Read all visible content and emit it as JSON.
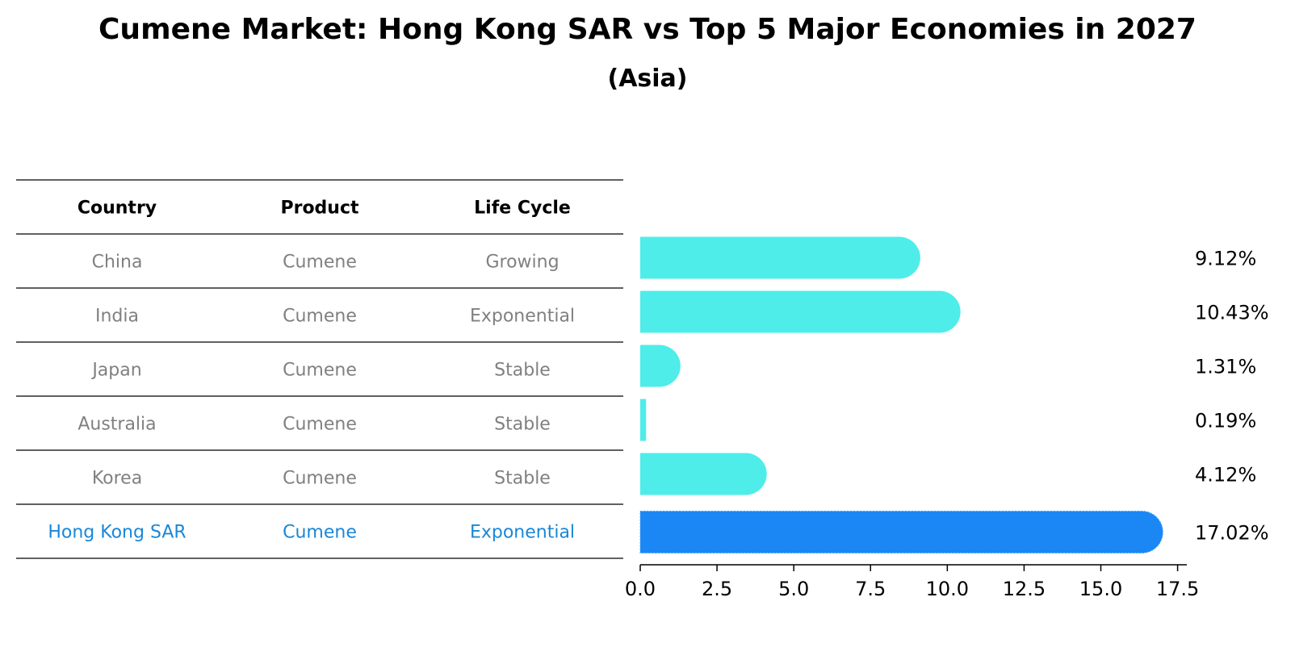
{
  "title": "Cumene Market: Hong Kong SAR vs Top 5 Major Economies in 2027",
  "subtitle": "(Asia)",
  "table": {
    "headers": [
      "Country",
      "Product",
      "Life Cycle"
    ]
  },
  "colors": {
    "bar": "#4EEDEA",
    "highlight": "#1A87F5",
    "row_text": "#808080",
    "highlight_text": "#1A87D8"
  },
  "chart_data": {
    "type": "bar",
    "orientation": "horizontal",
    "title": "Cumene Market: Hong Kong SAR vs Top 5 Major Economies in 2027",
    "subtitle": "(Asia)",
    "categories": [
      "China",
      "India",
      "Japan",
      "Australia",
      "Korea",
      "Hong Kong SAR"
    ],
    "products": [
      "Cumene",
      "Cumene",
      "Cumene",
      "Cumene",
      "Cumene",
      "Cumene"
    ],
    "life_cycle": [
      "Growing",
      "Exponential",
      "Stable",
      "Stable",
      "Stable",
      "Exponential"
    ],
    "values": [
      9.12,
      10.43,
      1.31,
      0.19,
      4.12,
      17.02
    ],
    "value_labels": [
      "9.12%",
      "10.43%",
      "1.31%",
      "0.19%",
      "4.12%",
      "17.02%"
    ],
    "highlight": "Hong Kong SAR",
    "xlim": [
      0,
      17.8
    ],
    "xticks": [
      0.0,
      2.5,
      5.0,
      7.5,
      10.0,
      12.5,
      15.0,
      17.5
    ],
    "xtick_labels": [
      "0.0",
      "2.5",
      "5.0",
      "7.5",
      "10.0",
      "12.5",
      "15.0",
      "17.5"
    ],
    "xlabel": "",
    "ylabel": "",
    "grid": false
  }
}
